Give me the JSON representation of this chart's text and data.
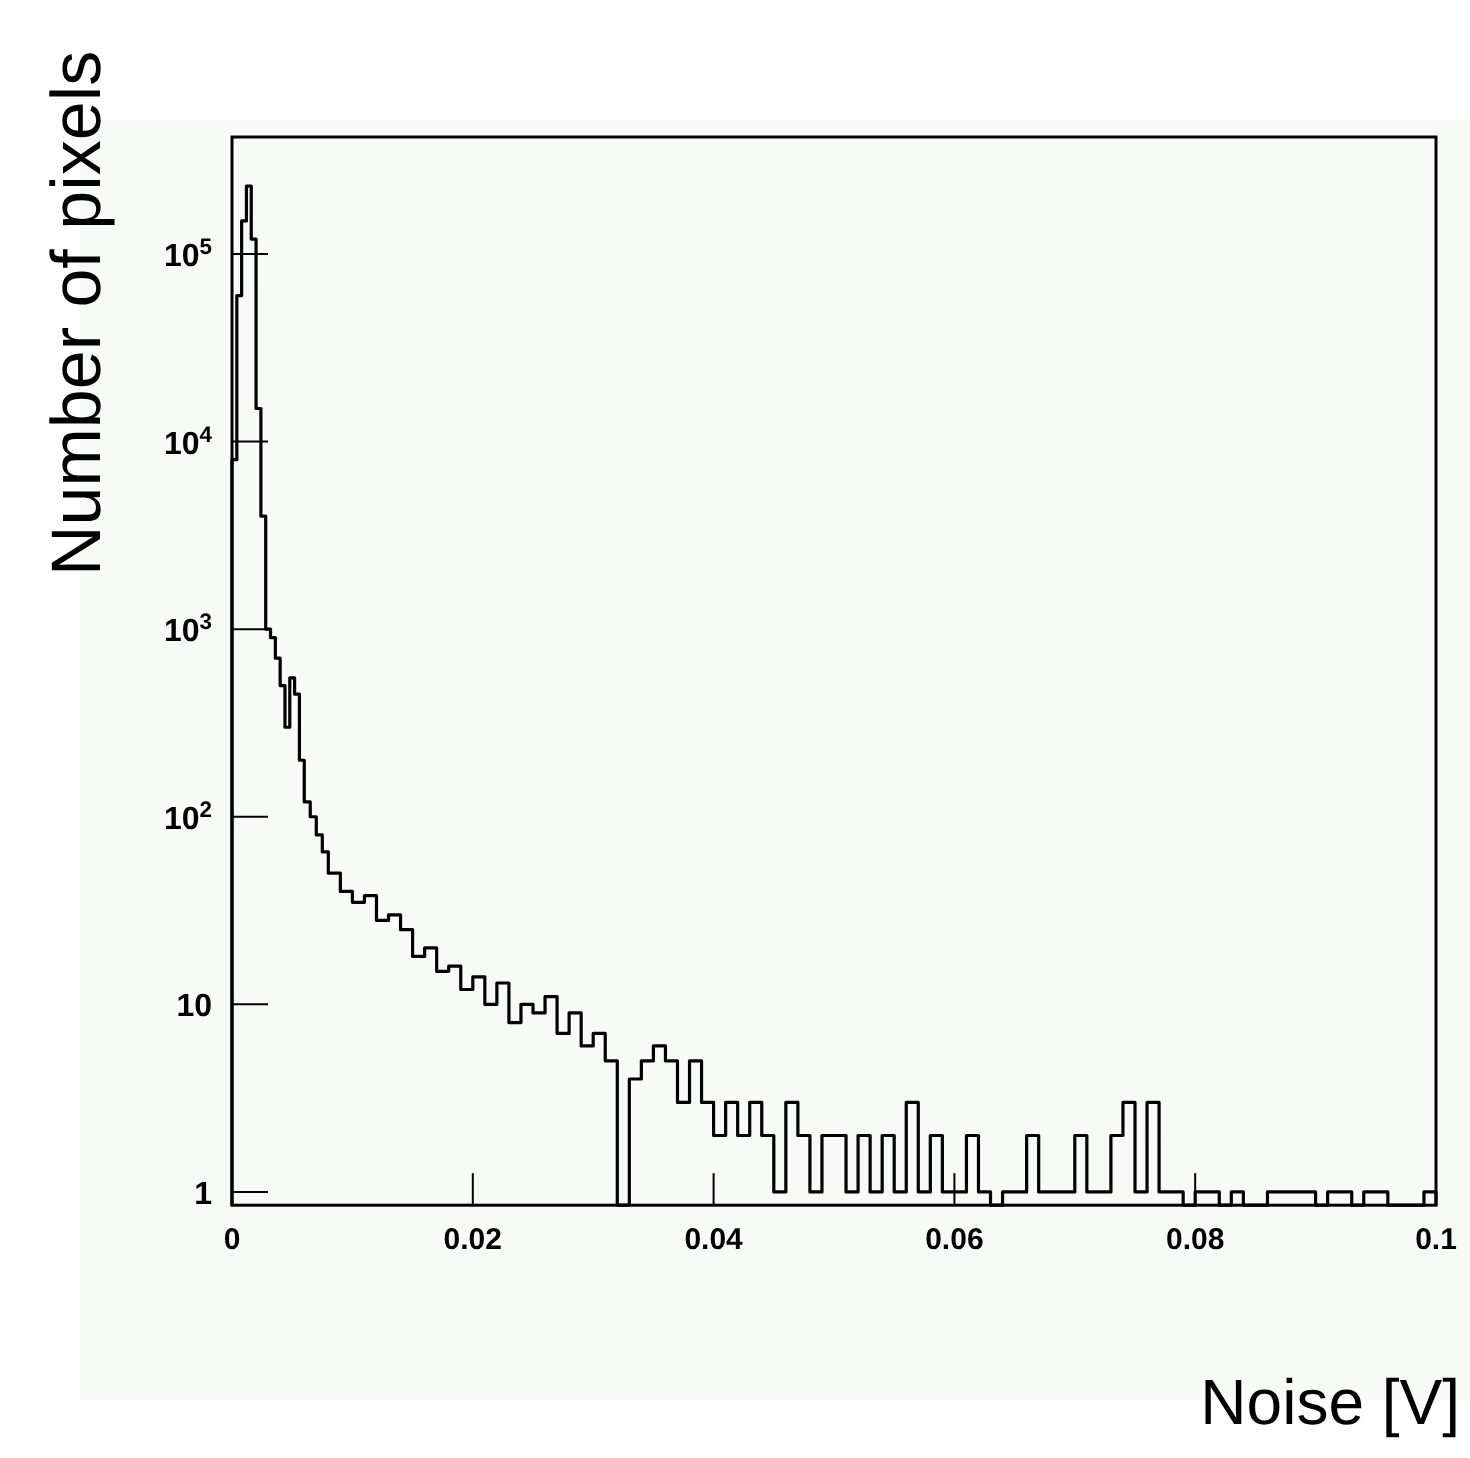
{
  "chart_data": {
    "type": "histogram",
    "xlabel": "Noise [V]",
    "ylabel": "Number of pixels",
    "log": "y",
    "color": "#000000",
    "bins": [
      0,
      0.0004,
      0.0008,
      0.0012,
      0.0016,
      0.002,
      0.0024,
      0.0028,
      0.0032,
      0.0036,
      0.004,
      0.0044,
      0.0048,
      0.0052,
      0.0056,
      0.006,
      0.0065,
      0.007,
      0.0075,
      0.008,
      0.009,
      0.01,
      0.011,
      0.012,
      0.013,
      0.014,
      0.015,
      0.016,
      0.017,
      0.018,
      0.019,
      0.02,
      0.021,
      0.022,
      0.023,
      0.024,
      0.025,
      0.026,
      0.027,
      0.028,
      0.029,
      0.03,
      0.031,
      0.032,
      0.033,
      0.034,
      0.035,
      0.036,
      0.037,
      0.038,
      0.039,
      0.04,
      0.041,
      0.042,
      0.043,
      0.044,
      0.045,
      0.046,
      0.047,
      0.048,
      0.049,
      0.05,
      0.051,
      0.052,
      0.053,
      0.054,
      0.055,
      0.056,
      0.057,
      0.058,
      0.059,
      0.06,
      0.061,
      0.062,
      0.063,
      0.064,
      0.065,
      0.066,
      0.067,
      0.068,
      0.069,
      0.07,
      0.071,
      0.072,
      0.073,
      0.074,
      0.075,
      0.076,
      0.077,
      0.078,
      0.079,
      0.08,
      0.081,
      0.082,
      0.083,
      0.084,
      0.085,
      0.086,
      0.087,
      0.088,
      0.089,
      0.09,
      0.091,
      0.092,
      0.093,
      0.094,
      0.095,
      0.096,
      0.097,
      0.098,
      0.099,
      0.1
    ],
    "values": [
      8000,
      60000,
      150000,
      230000,
      120000,
      15000,
      4000,
      1000,
      900,
      700,
      500,
      300,
      550,
      450,
      200,
      120,
      100,
      80,
      65,
      50,
      40,
      35,
      38,
      28,
      30,
      25,
      18,
      20,
      15,
      16,
      12,
      14,
      10,
      13,
      8,
      10,
      9,
      11,
      7,
      9,
      6,
      7,
      5,
      null,
      4,
      5,
      6,
      5,
      3,
      5,
      3,
      2,
      3,
      2,
      3,
      2,
      1,
      3,
      2,
      1,
      2,
      2,
      1,
      2,
      1,
      2,
      1,
      3,
      1,
      2,
      1,
      1,
      2,
      1,
      null,
      1,
      1,
      2,
      1,
      1,
      1,
      2,
      1,
      1,
      2,
      3,
      1,
      3,
      1,
      1,
      null,
      1,
      1,
      null,
      1,
      null,
      null,
      1,
      1,
      1,
      1,
      null,
      1,
      1,
      null,
      1,
      1,
      null,
      null,
      null,
      1
    ],
    "xlim": [
      0,
      0.1
    ],
    "ylim": [
      0.85,
      420000
    ],
    "xticks": [
      0,
      0.02,
      0.04,
      0.06,
      0.08,
      0.1
    ],
    "yticks": [
      1,
      10,
      {
        "value": 100,
        "label": "10$^{2}$"
      },
      {
        "value": 1000,
        "label": "10$^{3}$"
      },
      {
        "value": 10000,
        "label": "10$^{4}$"
      },
      {
        "value": 100000,
        "label": "10$^{5}$"
      }
    ]
  }
}
